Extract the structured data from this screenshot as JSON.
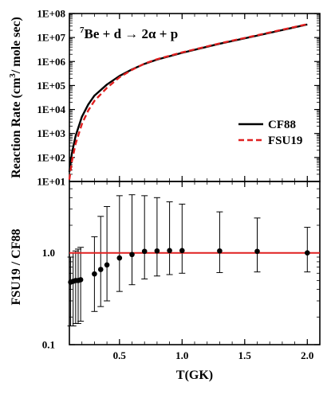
{
  "chart_data": [
    {
      "type": "line",
      "title_parts": {
        "sup": "7",
        "main": "Be + d → 2α + p"
      },
      "xlabel": "",
      "ylabel_parts": {
        "before": "Reaction Rate (cm",
        "sup": "3",
        "after": "/ mole sec)"
      },
      "yscale": "log",
      "ylim": [
        10,
        100000000
      ],
      "xlim": [
        0.1,
        2.1
      ],
      "y_tick_labels": [
        "1E+01",
        "1E+02",
        "1E+03",
        "1E+04",
        "1E+05",
        "1E+06",
        "1E+07",
        "1E+08"
      ],
      "legend_position": "bottom-right",
      "grid": false,
      "series": [
        {
          "name": "CF88",
          "color": "#000000",
          "style": "solid",
          "x": [
            0.1,
            0.12,
            0.15,
            0.2,
            0.25,
            0.3,
            0.4,
            0.5,
            0.6,
            0.7,
            0.8,
            1.0,
            1.3,
            1.6,
            2.0
          ],
          "y": [
            25,
            150,
            800,
            5000,
            16000,
            38000,
            110000,
            250000,
            470000,
            800000,
            1200000,
            2300000,
            5500000,
            12000000,
            35000000
          ]
        },
        {
          "name": "FSU19",
          "color": "#e02020",
          "style": "dashed",
          "x": [
            0.1,
            0.12,
            0.15,
            0.2,
            0.25,
            0.3,
            0.4,
            0.5,
            0.6,
            0.7,
            0.8,
            1.0,
            1.3,
            1.6,
            2.0
          ],
          "y": [
            12,
            70,
            380,
            2500,
            9000,
            23000,
            80000,
            220000,
            450000,
            820000,
            1250000,
            2400000,
            5700000,
            12500000,
            36000000
          ]
        }
      ]
    },
    {
      "type": "scatter",
      "xlabel": "T(GK)",
      "ylabel": "FSU19 / CF88",
      "yscale": "log",
      "ylim": [
        0.1,
        6
      ],
      "xlim": [
        0.1,
        2.1
      ],
      "x_tick_labels": [
        "0.5",
        "1.0",
        "1.5",
        "2.0"
      ],
      "y_tick_labels": [
        "0.1",
        "1.0"
      ],
      "y_tick_values": [
        0.1,
        1.0
      ],
      "reference_line": {
        "y": 1.0,
        "color": "#e02020"
      },
      "points": [
        {
          "x": 0.11,
          "y": 0.48,
          "lo": 0.16,
          "hi": 0.9
        },
        {
          "x": 0.13,
          "y": 0.49,
          "lo": 0.16,
          "hi": 1.0
        },
        {
          "x": 0.15,
          "y": 0.5,
          "lo": 0.17,
          "hi": 1.05
        },
        {
          "x": 0.17,
          "y": 0.5,
          "lo": 0.17,
          "hi": 1.1
        },
        {
          "x": 0.19,
          "y": 0.51,
          "lo": 0.18,
          "hi": 1.15
        },
        {
          "x": 0.3,
          "y": 0.59,
          "lo": 0.23,
          "hi": 1.5
        },
        {
          "x": 0.35,
          "y": 0.66,
          "lo": 0.26,
          "hi": 2.5
        },
        {
          "x": 0.4,
          "y": 0.74,
          "lo": 0.3,
          "hi": 3.2
        },
        {
          "x": 0.5,
          "y": 0.88,
          "lo": 0.38,
          "hi": 4.2
        },
        {
          "x": 0.6,
          "y": 0.96,
          "lo": 0.45,
          "hi": 4.3
        },
        {
          "x": 0.7,
          "y": 1.04,
          "lo": 0.52,
          "hi": 4.2
        },
        {
          "x": 0.8,
          "y": 1.05,
          "lo": 0.56,
          "hi": 4.0
        },
        {
          "x": 0.9,
          "y": 1.06,
          "lo": 0.58,
          "hi": 3.6
        },
        {
          "x": 1.0,
          "y": 1.06,
          "lo": 0.6,
          "hi": 3.4
        },
        {
          "x": 1.3,
          "y": 1.05,
          "lo": 0.61,
          "hi": 2.8
        },
        {
          "x": 1.6,
          "y": 1.04,
          "lo": 0.62,
          "hi": 2.4
        },
        {
          "x": 2.0,
          "y": 1.0,
          "lo": 0.62,
          "hi": 1.9
        }
      ]
    }
  ]
}
